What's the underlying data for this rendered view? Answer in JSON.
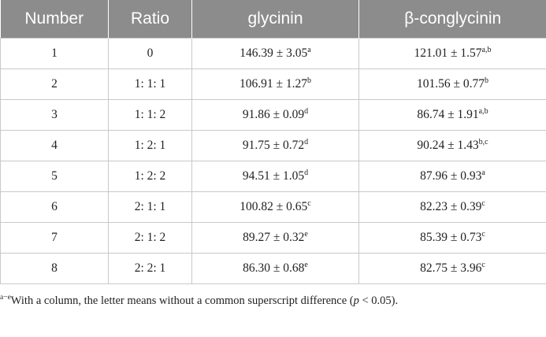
{
  "table": {
    "header": [
      "Number",
      "Ratio",
      "glycinin",
      "β-conglycinin"
    ],
    "rows": [
      [
        {
          "text": "1"
        },
        {
          "text": "0"
        },
        {
          "text": "146.39 ± 3.05",
          "sup": "a"
        },
        {
          "text": "121.01 ± 1.57",
          "sup": "a,b"
        }
      ],
      [
        {
          "text": "2"
        },
        {
          "text": "1: 1: 1"
        },
        {
          "text": "106.91 ± 1.27",
          "sup": "b"
        },
        {
          "text": "101.56 ± 0.77",
          "sup": "b"
        }
      ],
      [
        {
          "text": "3"
        },
        {
          "text": "1: 1: 2"
        },
        {
          "text": "91.86 ± 0.09",
          "sup": "d"
        },
        {
          "text": "86.74 ± 1.91",
          "sup": "a,b"
        }
      ],
      [
        {
          "text": "4"
        },
        {
          "text": "1: 2: 1"
        },
        {
          "text": "91.75 ± 0.72",
          "sup": "d"
        },
        {
          "text": "90.24 ± 1.43",
          "sup": "b,c"
        }
      ],
      [
        {
          "text": "5"
        },
        {
          "text": "1: 2: 2"
        },
        {
          "text": "94.51 ± 1.05",
          "sup": "d"
        },
        {
          "text": "87.96 ± 0.93",
          "sup": "a"
        }
      ],
      [
        {
          "text": "6"
        },
        {
          "text": "2: 1: 1"
        },
        {
          "text": "100.82 ± 0.65",
          "sup": "c"
        },
        {
          "text": "82.23 ± 0.39",
          "sup": "c"
        }
      ],
      [
        {
          "text": "7"
        },
        {
          "text": "2: 1: 2"
        },
        {
          "text": "89.27 ± 0.32",
          "sup": "e"
        },
        {
          "text": "85.39 ± 0.73",
          "sup": "c"
        }
      ],
      [
        {
          "text": "8"
        },
        {
          "text": "2: 2: 1"
        },
        {
          "text": "86.30 ± 0.68",
          "sup": "e"
        },
        {
          "text": "82.75 ± 3.96",
          "sup": "c"
        }
      ]
    ]
  },
  "footnote": {
    "sup": "a−e",
    "text": "With a column, the letter means without a common superscript difference (",
    "italic": "p",
    "end": " < 0.05)."
  }
}
